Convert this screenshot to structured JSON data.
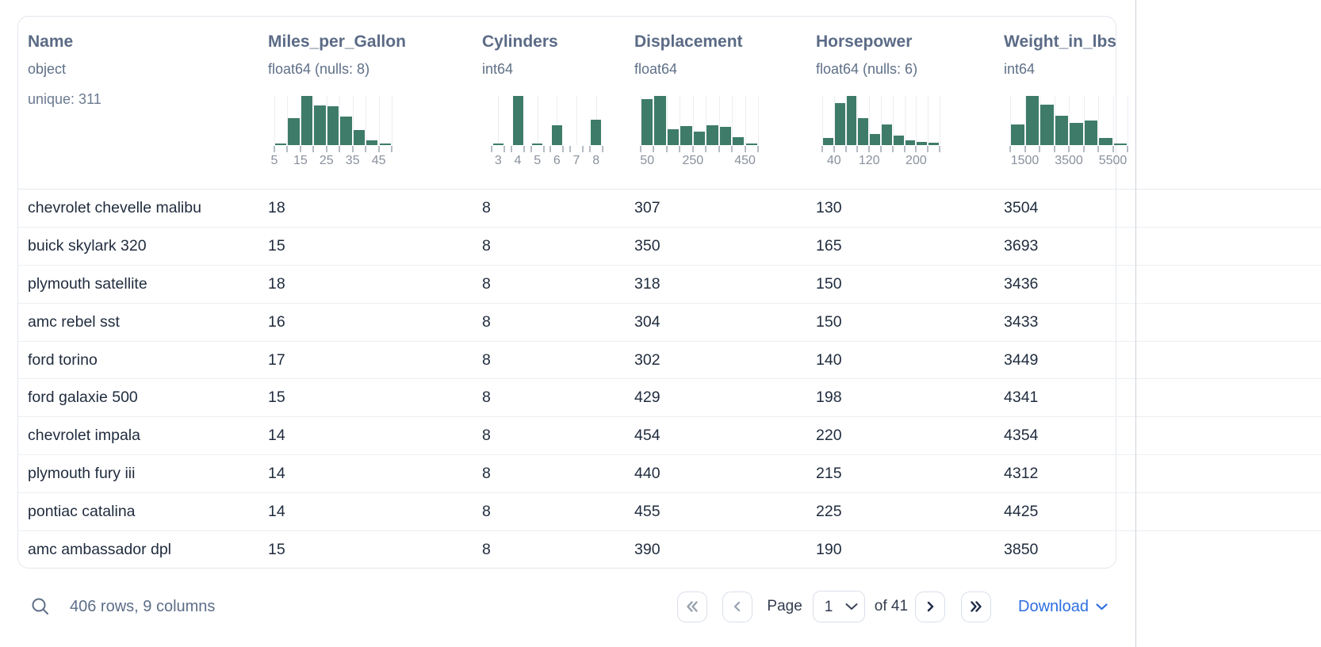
{
  "table": {
    "columns": [
      {
        "name": "Name",
        "dtype": "object",
        "extra": "unique: 311",
        "hist_index": null
      },
      {
        "name": "Miles_per_Gallon",
        "dtype": "float64 (nulls: 8)",
        "extra": null,
        "hist_index": 0
      },
      {
        "name": "Cylinders",
        "dtype": "int64",
        "extra": null,
        "hist_index": 1
      },
      {
        "name": "Displacement",
        "dtype": "float64",
        "extra": null,
        "hist_index": 2
      },
      {
        "name": "Horsepower",
        "dtype": "float64 (nulls: 6)",
        "extra": null,
        "hist_index": 3
      },
      {
        "name": "Weight_in_lbs",
        "dtype": "int64",
        "extra": null,
        "hist_index": 4
      }
    ],
    "rows": [
      [
        "chevrolet chevelle malibu",
        "18",
        "8",
        "307",
        "130",
        "3504"
      ],
      [
        "buick skylark 320",
        "15",
        "8",
        "350",
        "165",
        "3693"
      ],
      [
        "plymouth satellite",
        "18",
        "8",
        "318",
        "150",
        "3436"
      ],
      [
        "amc rebel sst",
        "16",
        "8",
        "304",
        "150",
        "3433"
      ],
      [
        "ford torino",
        "17",
        "8",
        "302",
        "140",
        "3449"
      ],
      [
        "ford galaxie 500",
        "15",
        "8",
        "429",
        "198",
        "4341"
      ],
      [
        "chevrolet impala",
        "14",
        "8",
        "454",
        "220",
        "4354"
      ],
      [
        "plymouth fury iii",
        "14",
        "8",
        "440",
        "215",
        "4312"
      ],
      [
        "pontiac catalina",
        "14",
        "8",
        "455",
        "225",
        "4425"
      ],
      [
        "amc ambassador dpl",
        "15",
        "8",
        "390",
        "190",
        "3850"
      ]
    ]
  },
  "chart_data": [
    {
      "type": "bar",
      "subtype": "histogram",
      "column": "Miles_per_Gallon",
      "style": "continuous",
      "bins": 9,
      "heights_rel": [
        0.03,
        0.55,
        1.0,
        0.8,
        0.79,
        0.58,
        0.3,
        0.1,
        0.03
      ],
      "tick_labels": [
        {
          "text": "5",
          "pos": 0
        },
        {
          "text": "15",
          "pos": 2
        },
        {
          "text": "25",
          "pos": 4
        },
        {
          "text": "35",
          "pos": 6
        },
        {
          "text": "45",
          "pos": 8
        }
      ]
    },
    {
      "type": "bar",
      "subtype": "histogram",
      "column": "Cylinders",
      "style": "categorical",
      "bins": 6,
      "heights_rel": [
        0.04,
        1.0,
        0.03,
        0.4,
        0,
        0.52
      ],
      "tick_labels": [
        {
          "text": "3",
          "pos": 0.5
        },
        {
          "text": "4",
          "pos": 1.5
        },
        {
          "text": "5",
          "pos": 2.5
        },
        {
          "text": "6",
          "pos": 3.5
        },
        {
          "text": "7",
          "pos": 4.5
        },
        {
          "text": "8",
          "pos": 5.5
        }
      ]
    },
    {
      "type": "bar",
      "subtype": "histogram",
      "column": "Displacement",
      "style": "continuous",
      "bins": 9,
      "heights_rel": [
        0.93,
        1.0,
        0.33,
        0.38,
        0.27,
        0.41,
        0.37,
        0.16,
        0.04
      ],
      "tick_labels": [
        {
          "text": "50",
          "pos": 0.5
        },
        {
          "text": "250",
          "pos": 4
        },
        {
          "text": "450",
          "pos": 8
        }
      ]
    },
    {
      "type": "bar",
      "subtype": "histogram",
      "column": "Horsepower",
      "style": "continuous",
      "bins": 10,
      "heights_rel": [
        0.15,
        0.85,
        1.0,
        0.55,
        0.22,
        0.42,
        0.2,
        0.09,
        0.06,
        0.05
      ],
      "tick_labels": [
        {
          "text": "40",
          "pos": 1
        },
        {
          "text": "120",
          "pos": 4
        },
        {
          "text": "200",
          "pos": 8
        }
      ]
    },
    {
      "type": "bar",
      "subtype": "histogram",
      "column": "Weight_in_lbs",
      "style": "continuous",
      "bins": 8,
      "heights_rel": [
        0.42,
        1.0,
        0.82,
        0.6,
        0.45,
        0.5,
        0.15,
        0.03
      ],
      "tick_labels": [
        {
          "text": "1500",
          "pos": 1
        },
        {
          "text": "3500",
          "pos": 4
        },
        {
          "text": "5500",
          "pos": 7
        }
      ]
    }
  ],
  "footer": {
    "summary": "406 rows, 9 columns",
    "search_icon": "magnifier-icon",
    "pagination": {
      "first_icon": "double-chevron-left",
      "prev_icon": "chevron-left",
      "page_label": "Page",
      "page_value": "1",
      "of_label": "of 41",
      "next_icon": "chevron-right",
      "last_icon": "double-chevron-right"
    },
    "download_label": "Download",
    "download_icon": "chevron-down"
  },
  "colors": {
    "histogram_bar": "#3e7c69",
    "header_text": "#5b6b86",
    "row_text": "#1f2b3d",
    "muted_text": "#8a919d",
    "download_link": "#2e6ee0",
    "border": "#e2e6ec"
  }
}
